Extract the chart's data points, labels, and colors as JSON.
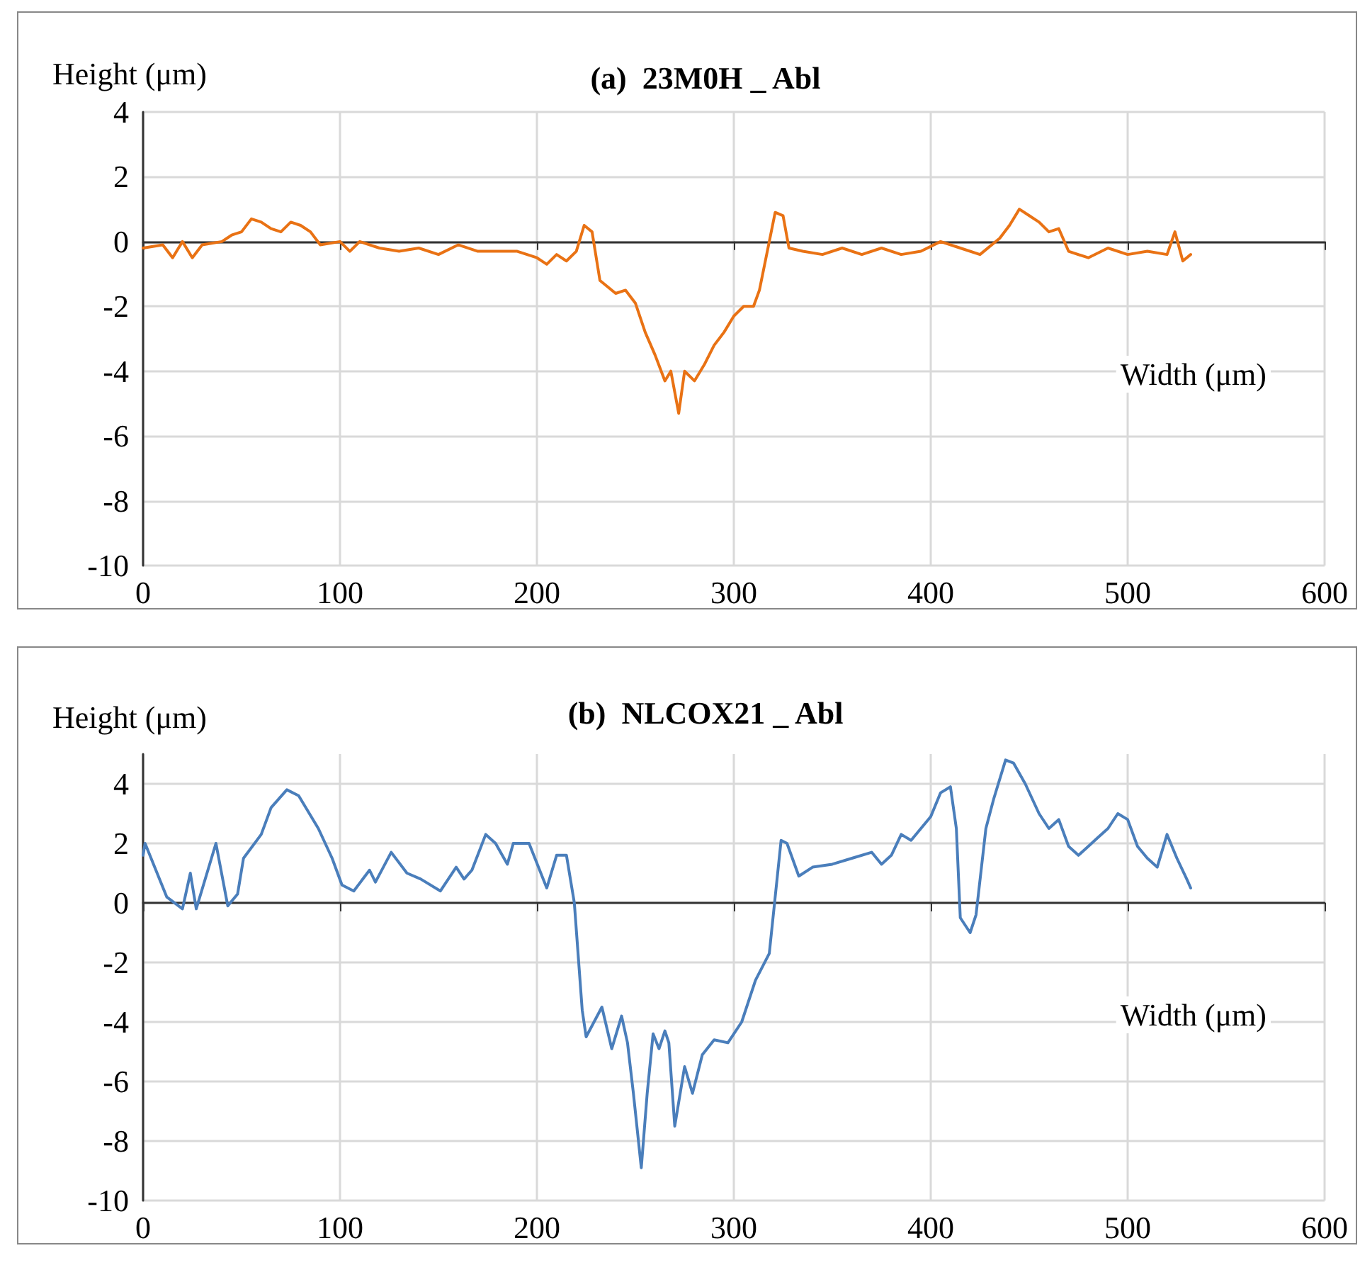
{
  "chart_data": [
    {
      "type": "line",
      "title": "(a)  23M0H _ Abl",
      "xlabel": "Width (μm)",
      "ylabel": "Height (μm)",
      "xlim": [
        0,
        600
      ],
      "xticks": [
        0,
        100,
        200,
        300,
        400,
        500,
        600
      ],
      "ylim": [
        -10,
        4
      ],
      "yticks": [
        -10,
        -8,
        -6,
        -4,
        -2,
        0,
        2,
        4
      ],
      "grid": true,
      "marker": "none",
      "line_style": "solid",
      "series": [
        {
          "color": "#e97214",
          "x": [
            0,
            10,
            15,
            20,
            25,
            30,
            40,
            45,
            50,
            55,
            60,
            65,
            70,
            75,
            80,
            85,
            90,
            100,
            105,
            110,
            120,
            130,
            140,
            150,
            160,
            170,
            180,
            190,
            200,
            205,
            210,
            215,
            220,
            224,
            228,
            232,
            240,
            245,
            250,
            255,
            260,
            265,
            268,
            272,
            275,
            280,
            285,
            290,
            295,
            300,
            305,
            310,
            313,
            318,
            321,
            325,
            328,
            335,
            345,
            355,
            365,
            375,
            385,
            395,
            405,
            415,
            425,
            435,
            440,
            445,
            450,
            455,
            460,
            465,
            470,
            480,
            490,
            500,
            510,
            520,
            524,
            528,
            532
          ],
          "values": [
            -0.2,
            -0.1,
            -0.5,
            0,
            -0.5,
            -0.1,
            0,
            0.2,
            0.3,
            0.7,
            0.6,
            0.4,
            0.3,
            0.6,
            0.5,
            0.3,
            -0.1,
            0,
            -0.3,
            0,
            -0.2,
            -0.3,
            -0.2,
            -0.4,
            -0.1,
            -0.3,
            -0.3,
            -0.3,
            -0.5,
            -0.7,
            -0.4,
            -0.6,
            -0.3,
            0.5,
            0.3,
            -1.2,
            -1.6,
            -1.5,
            -1.9,
            -2.8,
            -3.5,
            -4.3,
            -4,
            -5.3,
            -4,
            -4.3,
            -3.8,
            -3.2,
            -2.8,
            -2.3,
            -2,
            -2,
            -1.5,
            0,
            0.9,
            0.8,
            -0.2,
            -0.3,
            -0.4,
            -0.2,
            -0.4,
            -0.2,
            -0.4,
            -0.3,
            0,
            -0.2,
            -0.4,
            0.1,
            0.5,
            1,
            0.8,
            0.6,
            0.3,
            0.4,
            -0.3,
            -0.5,
            -0.2,
            -0.4,
            -0.3,
            -0.4,
            0.3,
            -0.6,
            -0.4
          ]
        }
      ]
    },
    {
      "type": "line",
      "title": "(b)  NLCOX21 _ Abl",
      "xlabel": "Width (μm)",
      "ylabel": "Height (μm)",
      "xlim": [
        0,
        600
      ],
      "xticks": [
        0,
        100,
        200,
        300,
        400,
        500,
        600
      ],
      "ylim": [
        -10,
        5
      ],
      "yticks": [
        -10,
        -8,
        -6,
        -4,
        -2,
        0,
        2,
        4
      ],
      "grid": true,
      "marker": "none",
      "line_style": "solid",
      "series": [
        {
          "color": "#4a7ebb",
          "x": [
            0,
            1,
            12,
            20,
            24,
            27,
            37,
            43,
            48,
            51,
            60,
            65,
            73,
            79,
            89,
            96,
            101,
            107,
            115,
            118,
            126,
            134,
            141,
            151,
            159,
            163,
            167,
            174,
            179,
            185,
            188,
            196,
            205,
            210,
            215,
            219,
            223,
            225,
            229,
            233,
            238,
            243,
            246,
            249,
            253,
            256,
            259,
            262,
            265,
            267,
            270,
            275,
            279,
            284,
            290,
            297,
            304,
            311,
            318,
            324,
            327,
            333,
            340,
            350,
            360,
            370,
            375,
            380,
            385,
            390,
            395,
            400,
            405,
            410,
            413,
            415,
            420,
            423,
            428,
            432,
            438,
            442,
            448,
            455,
            460,
            465,
            470,
            475,
            480,
            485,
            490,
            495,
            500,
            505,
            510,
            515,
            520,
            525,
            530,
            532
          ],
          "values": [
            1.6,
            2,
            0.2,
            -0.2,
            1,
            -0.2,
            2,
            -0.1,
            0.3,
            1.5,
            2.3,
            3.2,
            3.8,
            3.6,
            2.5,
            1.5,
            0.6,
            0.4,
            1.1,
            0.7,
            1.7,
            1,
            0.8,
            0.4,
            1.2,
            0.8,
            1.1,
            2.3,
            2,
            1.3,
            2,
            2,
            0.5,
            1.6,
            1.6,
            0,
            -3.6,
            -4.5,
            -4,
            -3.5,
            -4.9,
            -3.8,
            -4.7,
            -6.4,
            -8.9,
            -6.4,
            -4.4,
            -4.9,
            -4.3,
            -4.7,
            -7.5,
            -5.5,
            -6.4,
            -5.1,
            -4.6,
            -4.7,
            -4,
            -2.6,
            -1.7,
            2.1,
            2,
            0.9,
            1.2,
            1.3,
            1.5,
            1.7,
            1.3,
            1.6,
            2.3,
            2.1,
            2.5,
            2.9,
            3.7,
            3.9,
            2.5,
            -0.5,
            -1,
            -0.4,
            2.5,
            3.5,
            4.8,
            4.7,
            4,
            3,
            2.5,
            2.8,
            1.9,
            1.6,
            1.9,
            2.2,
            2.5,
            3,
            2.8,
            1.9,
            1.5,
            1.2,
            2.3,
            1.5,
            0.8,
            0.5
          ]
        }
      ]
    }
  ]
}
